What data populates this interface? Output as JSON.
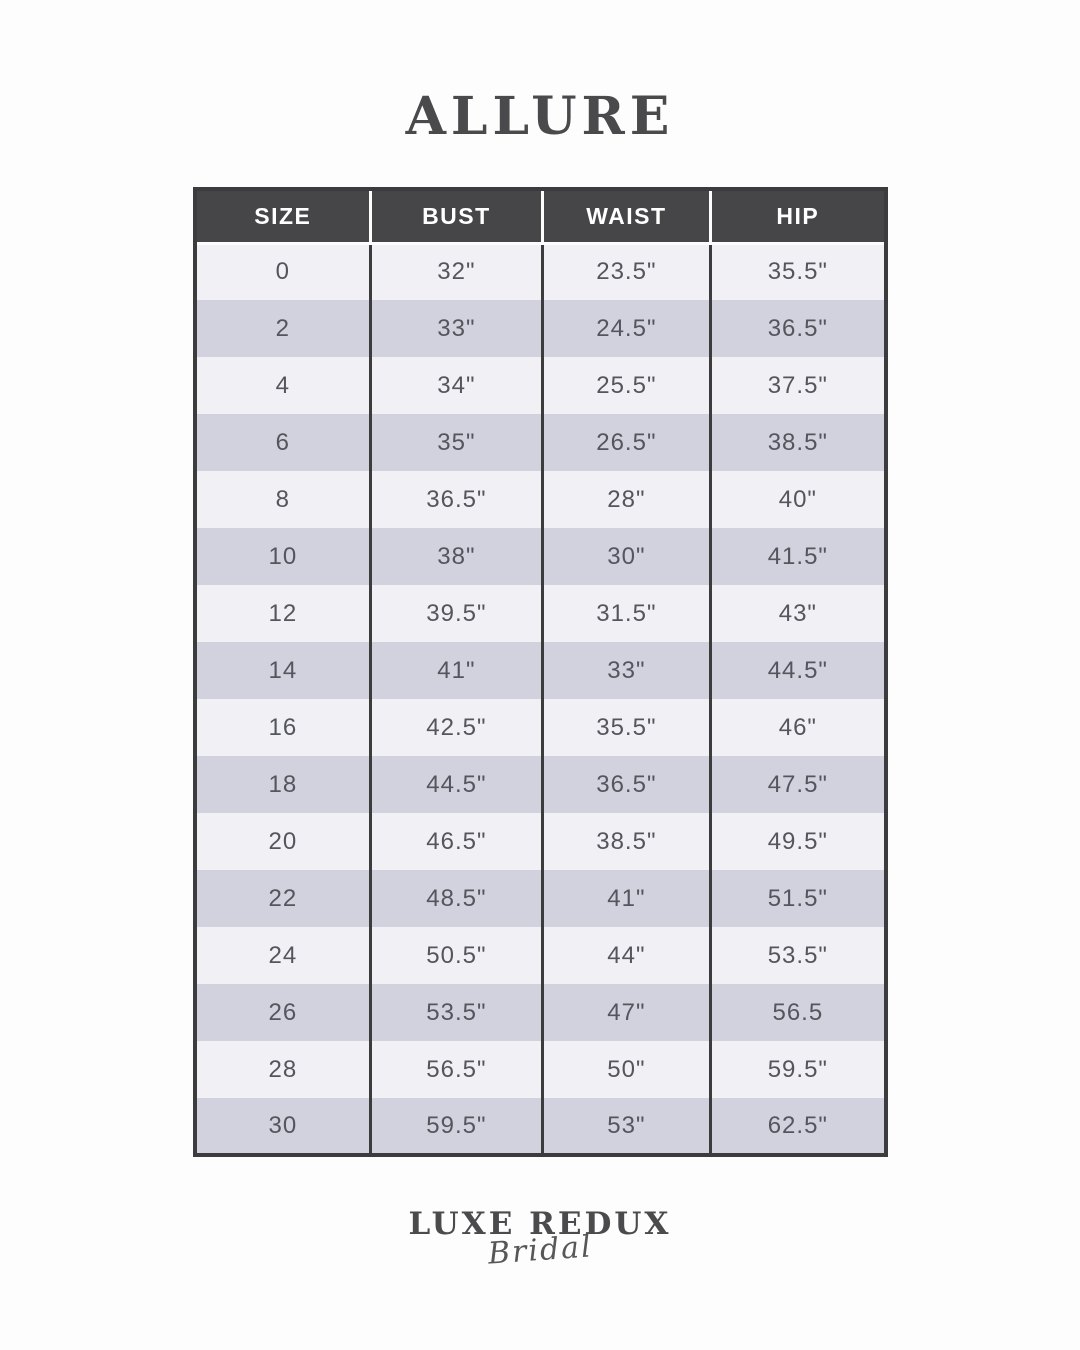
{
  "header": {
    "title": "ALLURE"
  },
  "chart_data": {
    "type": "table",
    "title": "ALLURE",
    "columns": [
      "SIZE",
      "BUST",
      "WAIST",
      "HIP"
    ],
    "rows": [
      [
        "0",
        "32\"",
        "23.5\"",
        "35.5\""
      ],
      [
        "2",
        "33\"",
        "24.5\"",
        "36.5\""
      ],
      [
        "4",
        "34\"",
        "25.5\"",
        "37.5\""
      ],
      [
        "6",
        "35\"",
        "26.5\"",
        "38.5\""
      ],
      [
        "8",
        "36.5\"",
        "28\"",
        "40\""
      ],
      [
        "10",
        "38\"",
        "30\"",
        "41.5\""
      ],
      [
        "12",
        "39.5\"",
        "31.5\"",
        "43\""
      ],
      [
        "14",
        "41\"",
        "33\"",
        "44.5\""
      ],
      [
        "16",
        "42.5\"",
        "35.5\"",
        "46\""
      ],
      [
        "18",
        "44.5\"",
        "36.5\"",
        "47.5\""
      ],
      [
        "20",
        "46.5\"",
        "38.5\"",
        "49.5\""
      ],
      [
        "22",
        "48.5\"",
        "41\"",
        "51.5\""
      ],
      [
        "24",
        "50.5\"",
        "44\"",
        "53.5\""
      ],
      [
        "26",
        "53.5\"",
        "47\"",
        "56.5"
      ],
      [
        "28",
        "56.5\"",
        "50\"",
        "59.5\""
      ],
      [
        "30",
        "59.5\"",
        "53\"",
        "62.5\""
      ]
    ],
    "layout": {
      "grid": "alternating-row-stripes",
      "header_position": "top"
    },
    "colors": {
      "header_bg": "#464648",
      "header_text": "#ffffff",
      "row_light": "#f1f0f5",
      "row_dark": "#d2d1de",
      "cell_text": "#55555c",
      "table_border": "#3c3c3e",
      "page_bg": "#fdfdfd",
      "title_text": "#4a4a4c"
    }
  },
  "footer": {
    "brand_primary": "LUXE REDUX",
    "brand_secondary": "Bridal"
  }
}
